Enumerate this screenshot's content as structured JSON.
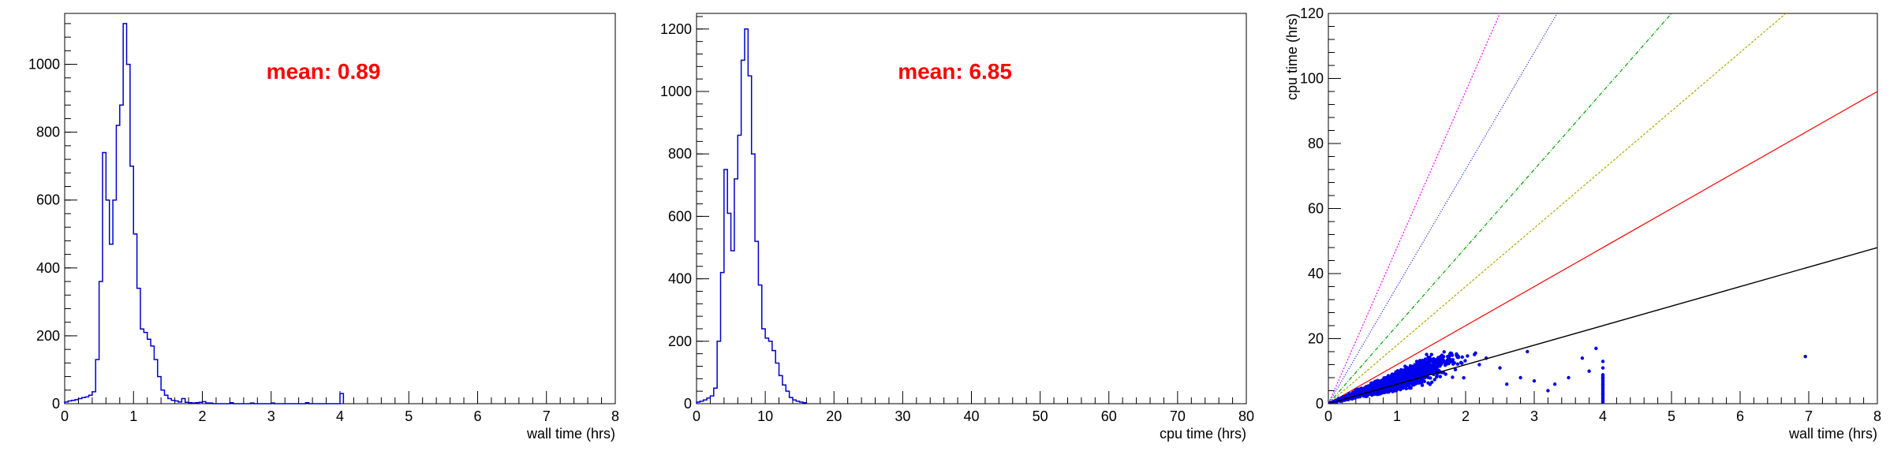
{
  "chart_data": [
    {
      "type": "histogram",
      "xlabel": "wall time (hrs)",
      "ylabel": "",
      "xlim": [
        0,
        8
      ],
      "ylim": [
        0,
        1150
      ],
      "xticks": [
        0,
        1,
        2,
        3,
        4,
        5,
        6,
        7,
        8
      ],
      "yticks": [
        0,
        200,
        400,
        600,
        800,
        1000
      ],
      "annotation": "mean: 0.89",
      "color": "#0000cc",
      "annotation_color": "#ff0000",
      "bin_width": 0.05,
      "bins": [
        {
          "x": 0.0,
          "y": 5
        },
        {
          "x": 0.05,
          "y": 8
        },
        {
          "x": 0.1,
          "y": 10
        },
        {
          "x": 0.15,
          "y": 12
        },
        {
          "x": 0.2,
          "y": 15
        },
        {
          "x": 0.25,
          "y": 18
        },
        {
          "x": 0.3,
          "y": 20
        },
        {
          "x": 0.35,
          "y": 25
        },
        {
          "x": 0.4,
          "y": 35
        },
        {
          "x": 0.45,
          "y": 130
        },
        {
          "x": 0.5,
          "y": 360
        },
        {
          "x": 0.55,
          "y": 740
        },
        {
          "x": 0.6,
          "y": 600
        },
        {
          "x": 0.65,
          "y": 470
        },
        {
          "x": 0.7,
          "y": 600
        },
        {
          "x": 0.75,
          "y": 820
        },
        {
          "x": 0.8,
          "y": 880
        },
        {
          "x": 0.85,
          "y": 1120
        },
        {
          "x": 0.9,
          "y": 1000
        },
        {
          "x": 0.95,
          "y": 700
        },
        {
          "x": 1.0,
          "y": 500
        },
        {
          "x": 1.05,
          "y": 340
        },
        {
          "x": 1.1,
          "y": 220
        },
        {
          "x": 1.15,
          "y": 210
        },
        {
          "x": 1.2,
          "y": 190
        },
        {
          "x": 1.25,
          "y": 170
        },
        {
          "x": 1.3,
          "y": 130
        },
        {
          "x": 1.35,
          "y": 80
        },
        {
          "x": 1.4,
          "y": 40
        },
        {
          "x": 1.45,
          "y": 25
        },
        {
          "x": 1.5,
          "y": 15
        },
        {
          "x": 1.55,
          "y": 10
        },
        {
          "x": 1.6,
          "y": 8
        },
        {
          "x": 1.65,
          "y": 5
        },
        {
          "x": 1.7,
          "y": 15
        },
        {
          "x": 1.75,
          "y": 4
        },
        {
          "x": 1.8,
          "y": 3
        },
        {
          "x": 1.85,
          "y": 2
        },
        {
          "x": 1.9,
          "y": 3
        },
        {
          "x": 1.95,
          "y": 4
        },
        {
          "x": 2.0,
          "y": 6
        },
        {
          "x": 2.05,
          "y": 2
        },
        {
          "x": 2.1,
          "y": 2
        },
        {
          "x": 2.4,
          "y": 3
        },
        {
          "x": 2.7,
          "y": 2
        },
        {
          "x": 3.0,
          "y": 2
        },
        {
          "x": 3.5,
          "y": 3
        },
        {
          "x": 4.0,
          "y": 30
        }
      ]
    },
    {
      "type": "histogram",
      "xlabel": "cpu time (hrs)",
      "ylabel": "",
      "xlim": [
        0,
        80
      ],
      "ylim": [
        0,
        1250
      ],
      "xticks": [
        0,
        10,
        20,
        30,
        40,
        50,
        60,
        70,
        80
      ],
      "yticks": [
        0,
        200,
        400,
        600,
        800,
        1000,
        1200
      ],
      "annotation": "mean: 6.85",
      "color": "#0000cc",
      "annotation_color": "#ff0000",
      "bin_width": 0.5,
      "bins": [
        {
          "x": 0.0,
          "y": 5
        },
        {
          "x": 0.5,
          "y": 8
        },
        {
          "x": 1.0,
          "y": 12
        },
        {
          "x": 1.5,
          "y": 18
        },
        {
          "x": 2.0,
          "y": 25
        },
        {
          "x": 2.5,
          "y": 50
        },
        {
          "x": 3.0,
          "y": 200
        },
        {
          "x": 3.5,
          "y": 420
        },
        {
          "x": 4.0,
          "y": 750
        },
        {
          "x": 4.5,
          "y": 610
        },
        {
          "x": 5.0,
          "y": 490
        },
        {
          "x": 5.5,
          "y": 720
        },
        {
          "x": 6.0,
          "y": 860
        },
        {
          "x": 6.5,
          "y": 1100
        },
        {
          "x": 7.0,
          "y": 1200
        },
        {
          "x": 7.5,
          "y": 1050
        },
        {
          "x": 8.0,
          "y": 800
        },
        {
          "x": 8.5,
          "y": 520
        },
        {
          "x": 9.0,
          "y": 380
        },
        {
          "x": 9.5,
          "y": 240
        },
        {
          "x": 10.0,
          "y": 210
        },
        {
          "x": 10.5,
          "y": 200
        },
        {
          "x": 11.0,
          "y": 170
        },
        {
          "x": 11.5,
          "y": 130
        },
        {
          "x": 12.0,
          "y": 90
        },
        {
          "x": 12.5,
          "y": 60
        },
        {
          "x": 13.0,
          "y": 40
        },
        {
          "x": 13.5,
          "y": 20
        },
        {
          "x": 14.0,
          "y": 12
        },
        {
          "x": 14.5,
          "y": 8
        },
        {
          "x": 15.0,
          "y": 5
        },
        {
          "x": 15.5,
          "y": 3
        }
      ]
    },
    {
      "type": "scatter",
      "xlabel": "wall time (hrs)",
      "ylabel": "cpu time (hrs)",
      "xlim": [
        0,
        8
      ],
      "ylim": [
        0,
        120
      ],
      "xticks": [
        0,
        1,
        2,
        3,
        4,
        5,
        6,
        7,
        8
      ],
      "yticks": [
        0,
        20,
        40,
        60,
        80,
        100,
        120
      ],
      "point_color": "#0000ee",
      "reference_lines": [
        {
          "slope": 6,
          "color": "#b0b000",
          "dash": "2,2"
        },
        {
          "slope": 12,
          "color": "#ff0000",
          "dash": ""
        },
        {
          "slope": 18,
          "color": "#00a000",
          "dash": "4,2,1,2"
        },
        {
          "slope": 24,
          "color": "#0000ee",
          "dash": "1,2"
        },
        {
          "slope": 36,
          "color": "#ff00ff",
          "dash": "2,2"
        },
        {
          "slope": 48,
          "color": "#000000",
          "dash": ""
        }
      ],
      "outliers": [
        [
          2.2,
          12
        ],
        [
          2.3,
          14
        ],
        [
          2.5,
          11
        ],
        [
          2.6,
          6
        ],
        [
          2.8,
          8
        ],
        [
          2.9,
          16
        ],
        [
          3.0,
          7
        ],
        [
          3.2,
          4
        ],
        [
          3.3,
          6
        ],
        [
          3.5,
          8
        ],
        [
          3.7,
          14
        ],
        [
          3.8,
          10
        ],
        [
          3.9,
          17
        ],
        [
          4.0,
          3
        ],
        [
          4.0,
          6
        ],
        [
          4.0,
          8
        ],
        [
          4.0,
          11
        ],
        [
          4.0,
          13
        ],
        [
          4.0,
          0.5
        ],
        [
          6.95,
          14.5
        ]
      ]
    }
  ]
}
